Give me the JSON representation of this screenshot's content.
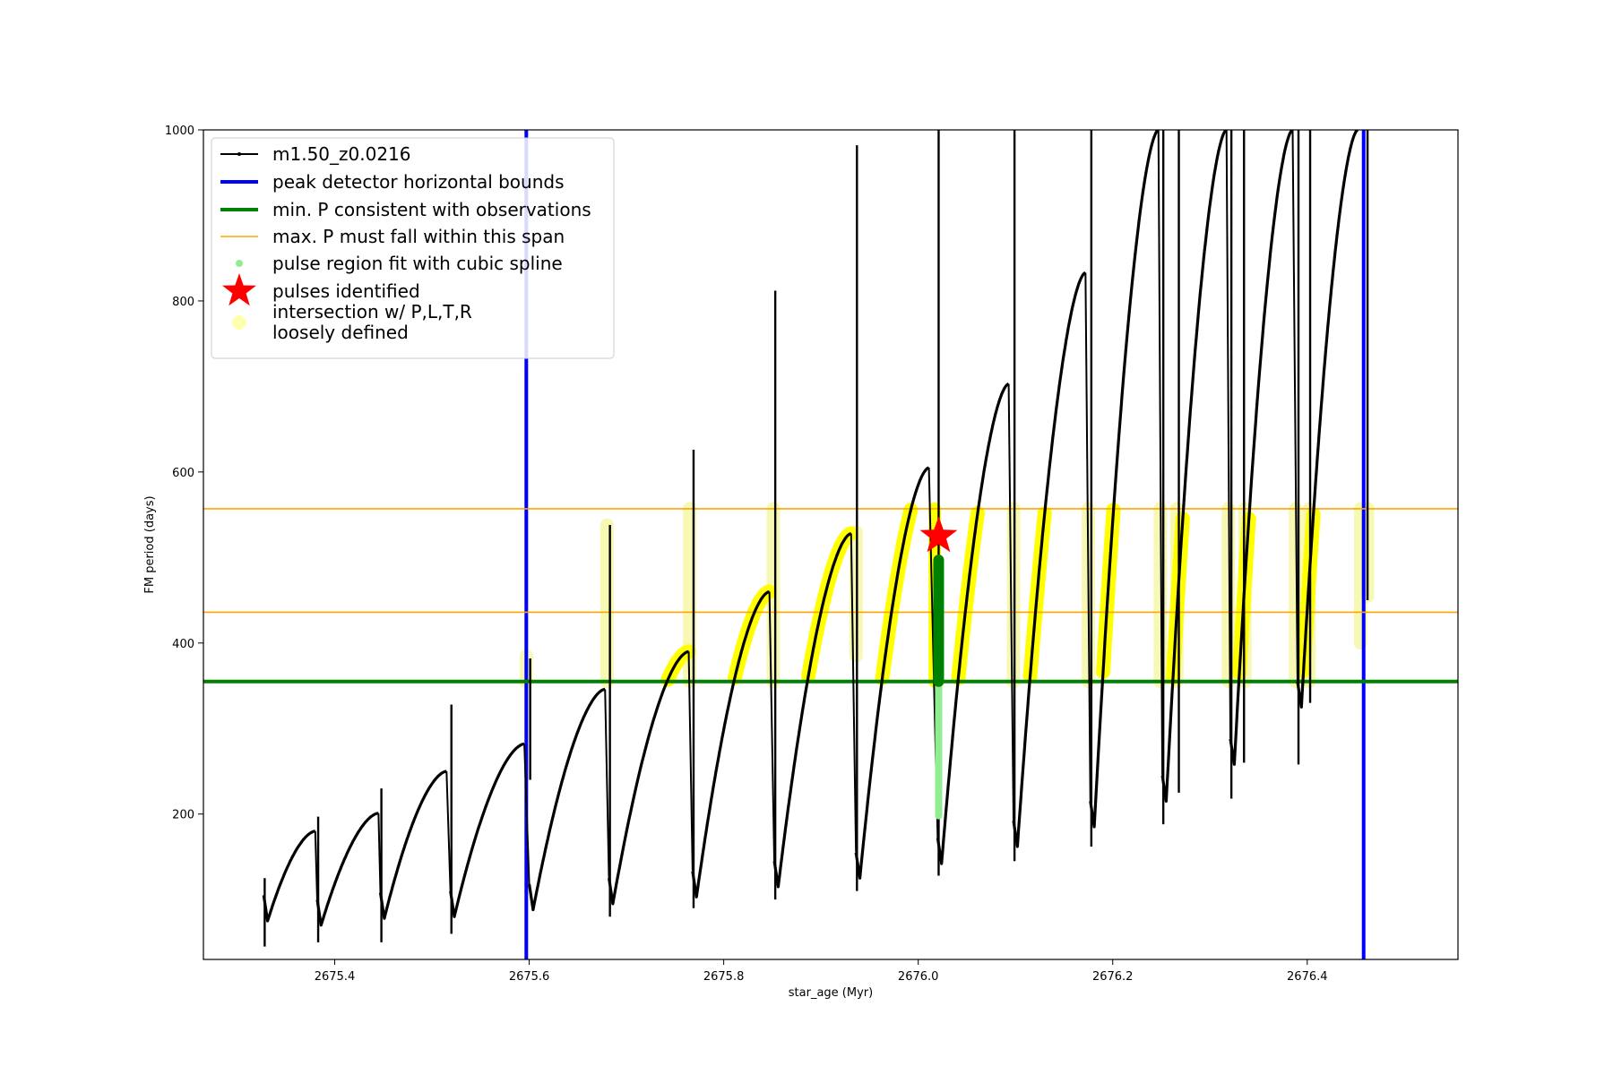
{
  "chart_data": {
    "type": "line",
    "title": "",
    "xlabel": "star_age (Myr)",
    "ylabel": "FM period (days)",
    "xlim": [
      2675.265,
      2676.555
    ],
    "ylim": [
      30,
      1000
    ],
    "xticks": [
      2675.4,
      2675.6,
      2675.8,
      2676.0,
      2676.2,
      2676.4
    ],
    "xtick_labels": [
      "2675.4",
      "2675.6",
      "2675.8",
      "2676.0",
      "2676.2",
      "2676.4"
    ],
    "yticks": [
      200,
      400,
      600,
      800,
      1000
    ],
    "ytick_labels": [
      "200",
      "400",
      "600",
      "800",
      "1000"
    ],
    "grid": false,
    "legend_position": "upper-left",
    "legend": [
      {
        "label": "m1.50_z0.0216",
        "style": "line-marker",
        "color": "#000000"
      },
      {
        "label": "peak detector horizontal bounds",
        "style": "thick-line",
        "color": "#0000ff"
      },
      {
        "label": "min. P consistent with observations",
        "style": "thick-line",
        "color": "#008000"
      },
      {
        "label": "max. P must fall within this span",
        "style": "thin-line",
        "color": "#ffa500"
      },
      {
        "label": "pulse region fit with cubic spline",
        "style": "dot",
        "color": "#90ee90"
      },
      {
        "label": "pulses identified",
        "style": "star",
        "color": "#ff0000"
      },
      {
        "label": "intersection w/ P,L,T,R\nloosely defined",
        "style": "dot",
        "color": "#ffffb0"
      }
    ],
    "vlines": [
      {
        "x": 2675.597,
        "color": "#0000ff",
        "label": "peak detector horizontal bounds"
      },
      {
        "x": 2676.458,
        "color": "#0000ff",
        "label": "peak detector horizontal bounds"
      }
    ],
    "hlines": [
      {
        "y": 355,
        "color": "#008000",
        "label": "min. P consistent with observations"
      },
      {
        "y": 436,
        "color": "#ffa500",
        "label": "max. P must fall within this span"
      },
      {
        "y": 557,
        "color": "#ffa500",
        "label": "max. P must fall within this span"
      }
    ],
    "series": [
      {
        "name": "m1.50_z0.0216",
        "color": "#000000",
        "cycles": [
          {
            "start": 2675.327,
            "end": 2675.38,
            "min": 75,
            "peak": 180,
            "spike_top": 125,
            "spike_bottom": 45
          },
          {
            "start": 2675.382,
            "end": 2675.445,
            "min": 70,
            "peak": 201,
            "spike_top": 197,
            "spike_bottom": 50
          },
          {
            "start": 2675.447,
            "end": 2675.515,
            "min": 78,
            "peak": 250,
            "spike_top": 230,
            "spike_bottom": 50
          },
          {
            "start": 2675.519,
            "end": 2675.595,
            "min": 80,
            "peak": 282,
            "spike_top": 328,
            "spike_bottom": 60
          },
          {
            "start": 2675.6,
            "end": 2675.678,
            "min": 88,
            "peak": 346,
            "spike_top": 382,
            "spike_bottom": 240
          },
          {
            "start": 2675.682,
            "end": 2675.764,
            "min": 95,
            "peak": 390,
            "spike_top": 538,
            "spike_bottom": 80
          },
          {
            "start": 2675.768,
            "end": 2675.847,
            "min": 103,
            "peak": 460,
            "spike_top": 626,
            "spike_bottom": 90
          },
          {
            "start": 2675.852,
            "end": 2675.931,
            "min": 115,
            "peak": 528,
            "spike_top": 812,
            "spike_bottom": 100
          },
          {
            "start": 2675.936,
            "end": 2676.011,
            "min": 125,
            "peak": 605,
            "spike_top": 982,
            "spike_bottom": 110
          },
          {
            "start": 2676.02,
            "end": 2676.093,
            "min": 142,
            "peak": 703,
            "spike_top": 1000,
            "spike_bottom": 128
          },
          {
            "start": 2676.098,
            "end": 2676.172,
            "min": 162,
            "peak": 833,
            "spike_top": 1000,
            "spike_bottom": 145
          },
          {
            "start": 2676.177,
            "end": 2676.247,
            "min": 185,
            "peak": 1000,
            "spike_top": 1000,
            "spike_bottom": 162
          },
          {
            "start": 2676.251,
            "end": 2676.317,
            "min": 215,
            "peak": 1000,
            "spike_top": 1000,
            "spike_bottom": 188
          },
          {
            "start": 2676.321,
            "end": 2676.385,
            "min": 258,
            "peak": 1000,
            "spike_top": 1000,
            "spike_bottom": 218
          },
          {
            "start": 2676.39,
            "end": 2676.452,
            "min": 325,
            "peak": 1000,
            "spike_top": 1000,
            "spike_bottom": 258
          }
        ],
        "extra_spikes": [
          {
            "x": 2676.268,
            "top": 1000,
            "bottom": 225
          },
          {
            "x": 2676.335,
            "top": 1000,
            "bottom": 260
          },
          {
            "x": 2676.403,
            "top": 1000,
            "bottom": 330
          },
          {
            "x": 2676.462,
            "top": 1000,
            "bottom": 450
          }
        ]
      }
    ],
    "intersection_spans": [
      {
        "x": 2675.597,
        "y_low": 355,
        "y_high": 385,
        "style": "faint"
      },
      {
        "x": 2675.68,
        "y_low": 355,
        "y_high": 538,
        "style": "faint"
      },
      {
        "x": 2675.765,
        "y_low": 355,
        "y_high": 557,
        "style": "faint"
      },
      {
        "x": 2675.851,
        "y_low": 355,
        "y_high": 557,
        "style": "faint"
      },
      {
        "x": 2675.936,
        "y_low": 385,
        "y_high": 530,
        "style": "faint"
      },
      {
        "x": 2676.017,
        "y_low": 355,
        "y_high": 557,
        "style": "bright"
      },
      {
        "x": 2676.098,
        "y_low": 355,
        "y_high": 557,
        "style": "faint"
      },
      {
        "x": 2676.175,
        "y_low": 355,
        "y_high": 557,
        "style": "faint"
      },
      {
        "x": 2676.249,
        "y_low": 355,
        "y_high": 557,
        "style": "faint"
      },
      {
        "x": 2676.266,
        "y_low": 355,
        "y_high": 557,
        "style": "faint"
      },
      {
        "x": 2676.319,
        "y_low": 355,
        "y_high": 557,
        "style": "faint"
      },
      {
        "x": 2676.336,
        "y_low": 355,
        "y_high": 557,
        "style": "faint"
      },
      {
        "x": 2676.388,
        "y_low": 355,
        "y_high": 557,
        "style": "faint"
      },
      {
        "x": 2676.402,
        "y_low": 355,
        "y_high": 557,
        "style": "faint"
      },
      {
        "x": 2676.455,
        "y_low": 400,
        "y_high": 557,
        "style": "faint"
      },
      {
        "x": 2676.462,
        "y_low": 455,
        "y_high": 557,
        "style": "faint"
      }
    ],
    "pulse_region": {
      "x": 2676.021,
      "y_low": 198,
      "y_high": 497,
      "green_low": 355,
      "green_high": 497
    },
    "pulses_identified": [
      {
        "x": 2676.021,
        "y": 525
      }
    ]
  }
}
